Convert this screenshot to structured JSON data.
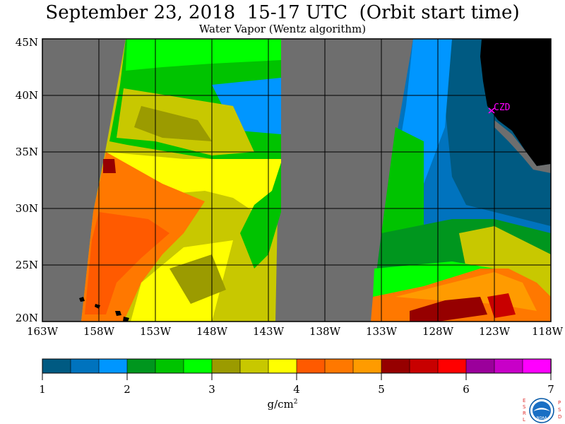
{
  "title": "September 23, 2018  15-17 UTC  (Orbit start time)",
  "subtitle": "Water Vapor (Wentz algorithm)",
  "map": {
    "lat_labels": [
      "45N",
      "40N",
      "35N",
      "30N",
      "25N",
      "20N"
    ],
    "lon_labels": [
      "163W",
      "158W",
      "153W",
      "148W",
      "143W",
      "138W",
      "133W",
      "128W",
      "123W",
      "118W"
    ],
    "site_label": "CZD",
    "site_color": "#ff00ff",
    "nodata_color": "#6e6e6e",
    "land_color": "#000000"
  },
  "colorbar": {
    "colors": [
      "#005a82",
      "#0073be",
      "#0096ff",
      "#00961e",
      "#00c300",
      "#00ff00",
      "#9b9b00",
      "#c8c800",
      "#ffff00",
      "#ff5a00",
      "#ff7800",
      "#ff9b00",
      "#960000",
      "#c80000",
      "#ff0000",
      "#9b009b",
      "#c800c8",
      "#ff00ff"
    ],
    "tick_labels": [
      "1",
      "2",
      "3",
      "4",
      "5",
      "6",
      "7"
    ],
    "units": "g/cm",
    "units_sup": "2"
  },
  "logo": {
    "left_letters": [
      "E",
      "S",
      "R",
      "L"
    ],
    "right_letters": [
      "P",
      "S",
      "D"
    ],
    "center_text": "NOAA"
  }
}
